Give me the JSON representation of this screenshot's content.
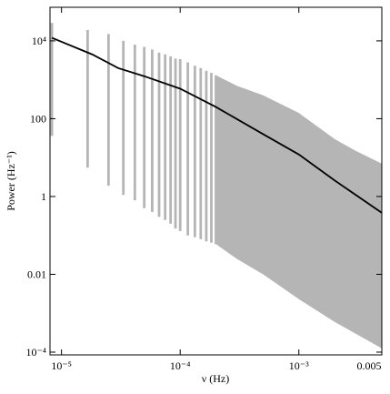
{
  "chart_data": {
    "type": "power-spectrum",
    "xlabel": "ν (Hz)",
    "ylabel": "Power (Hz⁻¹)",
    "log_x": true,
    "log_y": true,
    "xlim": [
      8e-06,
      0.005
    ],
    "ylim": [
      8.5e-05,
      73000
    ],
    "xticks": [
      {
        "value": 1e-05,
        "label": "10⁻⁵"
      },
      {
        "value": 0.0001,
        "label": "10⁻⁴"
      },
      {
        "value": 0.001,
        "label": "10⁻³"
      },
      0.005
    ],
    "yticks": [
      {
        "value": 0.0001,
        "label": "10⁻⁴"
      },
      0.01,
      1,
      100,
      {
        "value": 10000,
        "label": "10⁴"
      }
    ],
    "scatter_color": "#b5b5b5",
    "line_color": "#000000",
    "columns": {
      "x": [
        8.3e-06,
        1.66e-05,
        2.49e-05,
        3.32e-05,
        4.15e-05,
        4.98e-05,
        5.81e-05,
        6.64e-05,
        7.47e-05,
        8.3e-05,
        9.13e-05,
        0.0001,
        0.000116,
        0.000133,
        0.000149,
        0.000166,
        0.000183,
        0.0002
      ],
      "high": [
        29000,
        19000,
        15000,
        10000,
        8000,
        7000,
        6000,
        5000,
        4500,
        4000,
        3500,
        3400,
        2800,
        2300,
        2000,
        1700,
        1500,
        1300
      ],
      "low": [
        36,
        5.5,
        1.9,
        1.1,
        0.8,
        0.5,
        0.4,
        0.3,
        0.25,
        0.2,
        0.15,
        0.13,
        0.1,
        0.09,
        0.08,
        0.07,
        0.065,
        0.06
      ]
    },
    "band": {
      "x": [
        0.0002,
        0.0003,
        0.0005,
        0.001,
        0.002,
        0.003,
        0.005
      ],
      "upper": [
        1300,
        700,
        400,
        140,
        30,
        15,
        7
      ],
      "lower": [
        0.06,
        0.025,
        0.01,
        0.0023,
        0.0006,
        0.0003,
        0.000125
      ]
    },
    "model": {
      "x": [
        8.3e-06,
        1.82e-05,
        3e-05,
        5e-05,
        0.0001,
        0.0002,
        0.0005,
        0.001,
        0.002,
        0.005
      ],
      "values": [
        12000,
        4470,
        2000,
        1230,
        590,
        200,
        40,
        12,
        2.6,
        0.38
      ]
    }
  }
}
